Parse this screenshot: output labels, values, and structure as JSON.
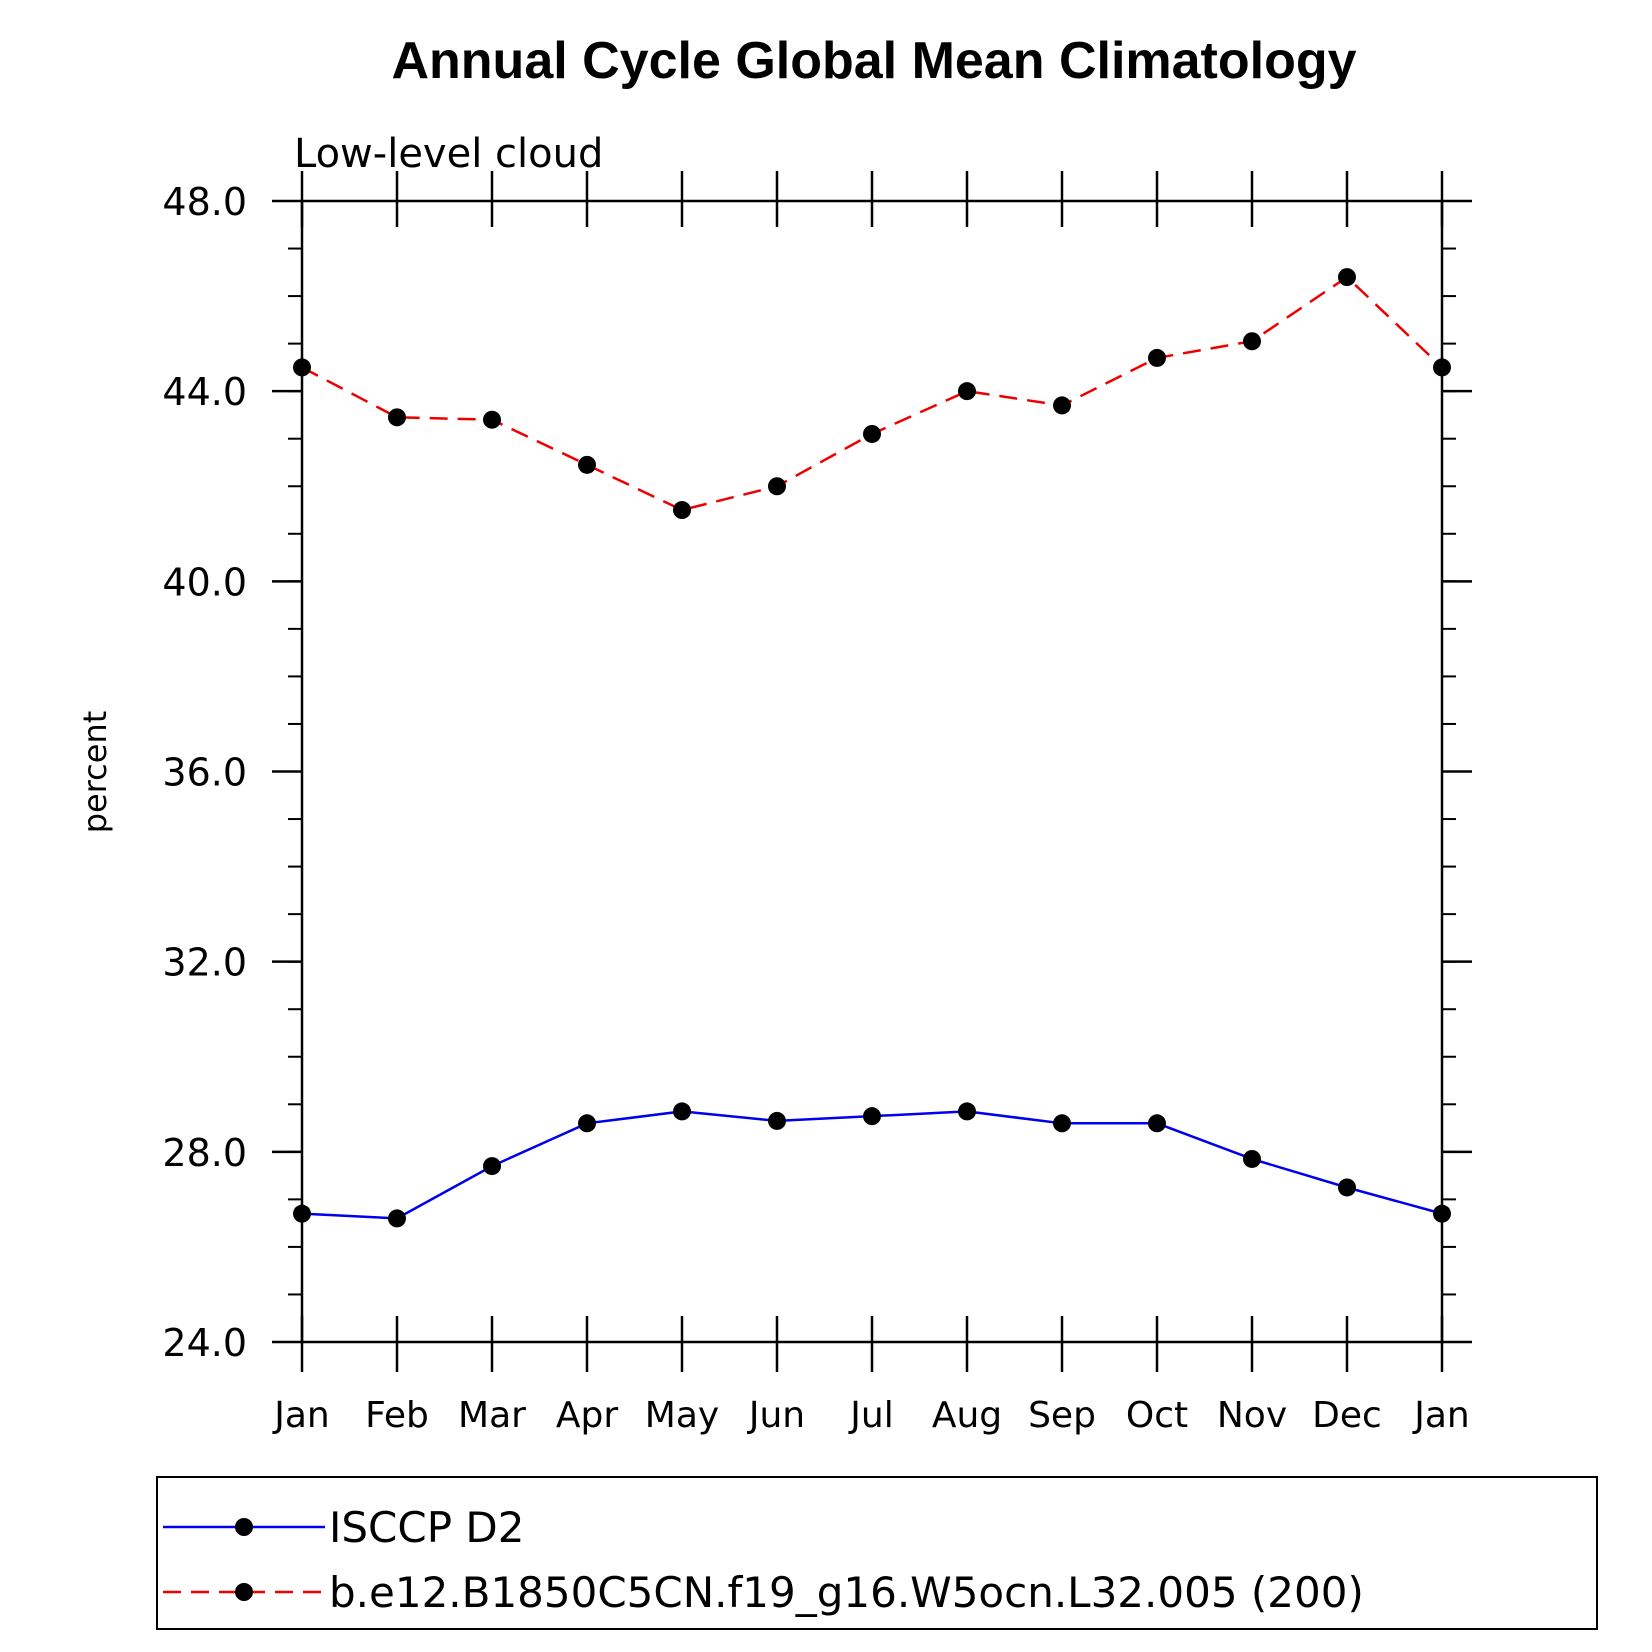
{
  "chart_data": {
    "type": "line",
    "title": "Annual Cycle Global Mean Climatology",
    "subtitle": "Low-level cloud",
    "xlabel": "",
    "ylabel": "percent",
    "categories": [
      "Jan",
      "Feb",
      "Mar",
      "Apr",
      "May",
      "Jun",
      "Jul",
      "Aug",
      "Sep",
      "Oct",
      "Nov",
      "Dec",
      "Jan"
    ],
    "ylim": [
      24.0,
      48.0
    ],
    "y_major_ticks": [
      24.0,
      28.0,
      32.0,
      36.0,
      40.0,
      44.0,
      48.0
    ],
    "y_major_tick_labels": [
      "24.0",
      "28.0",
      "32.0",
      "36.0",
      "40.0",
      "44.0",
      "48.0"
    ],
    "y_minor_step": 1.0,
    "grid": false,
    "legend_position": "bottom",
    "series": [
      {
        "name": "ISCCP D2",
        "color": "#0000ee",
        "line_style": "solid",
        "marker": "filled-circle",
        "values": [
          26.7,
          26.6,
          27.7,
          28.6,
          28.85,
          28.65,
          28.75,
          28.85,
          28.6,
          28.6,
          27.85,
          27.25,
          26.7
        ]
      },
      {
        "name": "b.e12.B1850C5CN.f19_g16.W5ocn.L32.005 (200)",
        "color": "#ee0000",
        "line_style": "dashed",
        "marker": "filled-circle",
        "values": [
          44.5,
          43.45,
          43.4,
          42.45,
          41.5,
          42.0,
          43.1,
          44.0,
          43.7,
          44.7,
          45.05,
          46.4,
          44.5
        ]
      }
    ]
  }
}
